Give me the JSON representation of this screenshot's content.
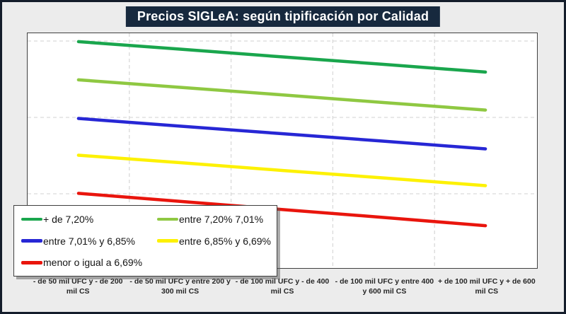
{
  "title": "Precios SIGLeA: según tipificación por Calidad",
  "colors": {
    "frame_border": "#141d2b",
    "background": "#ececec",
    "title_bg": "#17293e",
    "title_text": "#ffffff",
    "plot_bg": "#ffffff",
    "gridline": "#d9d9d9"
  },
  "chart_data": {
    "type": "line",
    "title": "Precios SIGLeA: según tipificación por Calidad",
    "categories": [
      "- de 50 mil UFC y - de 200 mil CS",
      "- de 50 mil UFC y entre 200 y 300 mil CS",
      "- de 100 mil UFC y - de 400 mil CS",
      "- de 100 mil UFC y entre 400 y 600 mil CS",
      "+ de 100 mil UFC y + de 600 mil CS"
    ],
    "series": [
      {
        "name": "+ de 7,20%",
        "color": "#1aa64d",
        "values": [
          96.4,
          93.2,
          89.9,
          86.7,
          83.4
        ]
      },
      {
        "name": "entre 7,20% 7,01%",
        "color": "#8fc842",
        "values": [
          80.1,
          76.9,
          73.7,
          70.4,
          67.2
        ]
      },
      {
        "name": "entre 7,01% y 6,85%",
        "color": "#2727d5",
        "values": [
          63.6,
          60.3,
          57.1,
          53.9,
          50.6
        ]
      },
      {
        "name": "entre 6,85% y 6,69%",
        "color": "#fdf103",
        "values": [
          47.9,
          44.7,
          41.4,
          38.2,
          34.9
        ]
      },
      {
        "name": "menor o igual a 6,69%",
        "color": "#e9150d",
        "values": [
          31.6,
          28.2,
          24.7,
          21.3,
          17.8
        ]
      }
    ],
    "xlabel": "",
    "ylabel": "",
    "y_axis_visible": false,
    "y_scale_note": "y-axis has no tick labels in source; values are estimated percent of plot height (0 = bottom, 100 = top)",
    "ylim": [
      0,
      100
    ],
    "grid": "dashed, light gray; 3 horizontal + 4 vertical lines",
    "legend_position": "overlay bottom-left, 2 columns, white box with shadow"
  }
}
